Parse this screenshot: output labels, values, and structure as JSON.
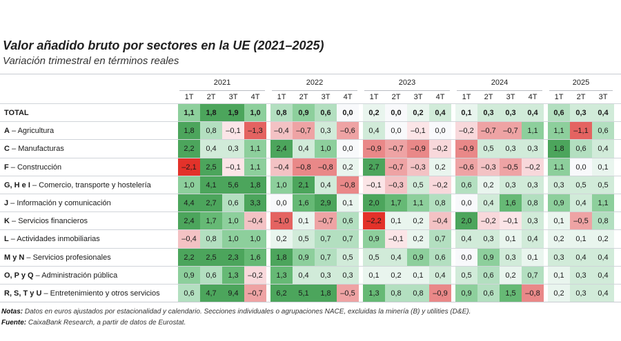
{
  "chart_data": {
    "type": "heatmap",
    "title": "Valor añadido bruto por sectores en la UE (2021–2025)",
    "subtitle": "Variación trimestral en términos reales",
    "years": [
      {
        "year": "2021",
        "quarters": [
          "1T",
          "2T",
          "3T",
          "4T"
        ]
      },
      {
        "year": "2022",
        "quarters": [
          "1T",
          "2T",
          "3T",
          "4T"
        ]
      },
      {
        "year": "2023",
        "quarters": [
          "1T",
          "2T",
          "3T",
          "4T"
        ]
      },
      {
        "year": "2024",
        "quarters": [
          "1T",
          "2T",
          "3T",
          "4T"
        ]
      },
      {
        "year": "2025",
        "quarters": [
          "1T",
          "2T",
          "3T"
        ]
      }
    ],
    "rows": [
      {
        "code": "TOTAL",
        "name": "",
        "total": true,
        "values": [
          1.1,
          1.8,
          1.9,
          1.0,
          0.8,
          0.9,
          0.6,
          0.0,
          0.2,
          0.0,
          0.2,
          0.4,
          0.1,
          0.3,
          0.3,
          0.4,
          0.6,
          0.3,
          0.4
        ]
      },
      {
        "code": "A",
        "name": "Agricultura",
        "values": [
          1.8,
          0.8,
          -0.1,
          -1.3,
          -0.4,
          -0.7,
          0.3,
          -0.6,
          0.4,
          0.0,
          -0.1,
          0.0,
          -0.2,
          -0.7,
          -0.7,
          1.1,
          1.1,
          -1.1,
          0.6
        ]
      },
      {
        "code": "C",
        "name": "Manufacturas",
        "values": [
          2.2,
          0.4,
          0.3,
          1.1,
          2.4,
          0.4,
          1.0,
          0.0,
          -0.9,
          -0.7,
          -0.9,
          -0.2,
          -0.9,
          0.5,
          0.3,
          0.3,
          1.8,
          0.6,
          0.4
        ]
      },
      {
        "code": "F",
        "name": "Construcción",
        "values": [
          -2.1,
          2.5,
          -0.1,
          1.1,
          -0.4,
          -0.8,
          -0.8,
          0.2,
          2.7,
          -0.7,
          -0.3,
          0.2,
          -0.6,
          -0.3,
          -0.5,
          -0.2,
          1.1,
          0.0,
          0.1
        ]
      },
      {
        "code": "G, H e I",
        "name": "Comercio, transporte y hostelería",
        "values": [
          1.0,
          4.1,
          5.6,
          1.8,
          1.0,
          2.1,
          0.4,
          -0.8,
          -0.1,
          -0.3,
          0.5,
          -0.2,
          0.6,
          0.2,
          0.3,
          0.3,
          0.3,
          0.5,
          0.5
        ]
      },
      {
        "code": "J",
        "name": "Información y comunicación",
        "values": [
          4.4,
          2.7,
          0.6,
          3.3,
          0.0,
          1.6,
          2.9,
          0.1,
          2.0,
          1.7,
          1.1,
          0.8,
          0.0,
          0.4,
          1.6,
          0.8,
          0.9,
          0.4,
          1.1
        ]
      },
      {
        "code": "K",
        "name": "Servicios financieros",
        "values": [
          2.4,
          1.7,
          1.0,
          -0.4,
          -1.0,
          0.1,
          -0.7,
          0.6,
          -2.2,
          0.1,
          0.2,
          -0.4,
          2.0,
          -0.2,
          -0.1,
          0.3,
          0.1,
          -0.5,
          0.8
        ]
      },
      {
        "code": "L",
        "name": "Actividades inmobiliarias",
        "values": [
          -0.4,
          0.8,
          1.0,
          1.0,
          0.2,
          0.5,
          0.7,
          0.7,
          0.9,
          -0.1,
          0.2,
          0.7,
          0.4,
          0.3,
          0.1,
          0.4,
          0.2,
          0.1,
          0.2
        ]
      },
      {
        "code": "M y N",
        "name": "Servicios profesionales",
        "values": [
          2.2,
          2.5,
          2.3,
          1.6,
          1.8,
          0.9,
          0.7,
          0.5,
          0.5,
          0.4,
          0.9,
          0.6,
          0.0,
          0.9,
          0.3,
          0.1,
          0.3,
          0.4,
          0.4
        ]
      },
      {
        "code": "O, P y Q",
        "name": "Administración pública",
        "values": [
          0.9,
          0.6,
          1.3,
          -0.2,
          1.3,
          0.4,
          0.3,
          0.3,
          0.1,
          0.2,
          0.1,
          0.4,
          0.5,
          0.6,
          0.2,
          0.7,
          0.1,
          0.3,
          0.4
        ]
      },
      {
        "code": "R, S, T y U",
        "name": "Entretenimiento y otros servicios",
        "values": [
          0.6,
          4.7,
          9.4,
          -0.7,
          6.2,
          5.1,
          1.8,
          -0.5,
          1.3,
          0.8,
          0.8,
          -0.9,
          0.9,
          0.6,
          1.5,
          -0.8,
          0.2,
          0.3,
          0.4
        ]
      }
    ],
    "colors": {
      "positive_max": "#4ca55c",
      "negative_max": "#e3322a",
      "zero": "#f8f9fb"
    }
  },
  "notes": {
    "notes_label": "Notas:",
    "notes_text": " Datos en euros ajustados por estacionalidad y calendario. Secciones individuales o agrupaciones NACE, excluidas la minería (B) y utilities (D&E).",
    "source_label": "Fuente:",
    "source_text": " CaixaBank Research, a partir de datos de Eurostat."
  }
}
